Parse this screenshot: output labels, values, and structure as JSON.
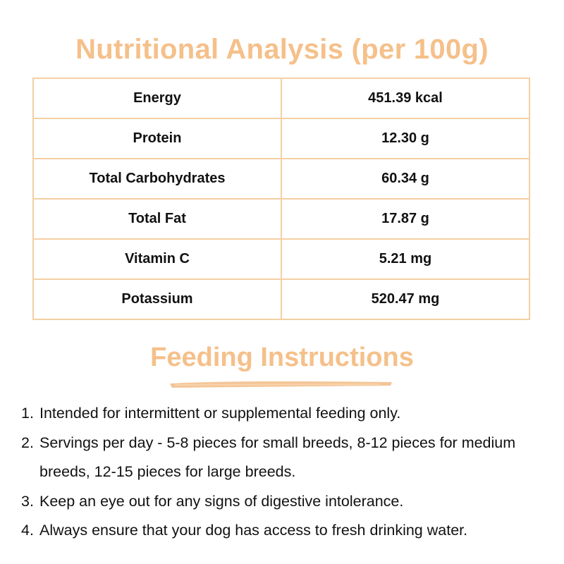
{
  "header": {
    "title": "Nutritional Analysis (per 100g)"
  },
  "table": {
    "rows": [
      [
        "Energy",
        "451.39 kcal"
      ],
      [
        "Protein",
        "12.30 g"
      ],
      [
        "Total Carbohydrates",
        "60.34 g"
      ],
      [
        "Total Fat",
        "17.87 g"
      ],
      [
        "Vitamin C",
        "5.21 mg"
      ],
      [
        "Potassium",
        "520.47 mg"
      ]
    ]
  },
  "instructions": {
    "title": "Feeding Instructions",
    "items": [
      {
        "number": "1.",
        "text": "Intended for intermittent or supplemental feeding only."
      },
      {
        "number": "2.",
        "text": "Servings per day - 5-8 pieces for small breeds, 8-12 pieces for medium breeds, 12-15 pieces for large breeds."
      },
      {
        "number": "3.",
        "text": "Keep an eye out for any signs of digestive intolerance."
      },
      {
        "number": "4.",
        "text": "Always ensure that your dog has access to fresh drinking water."
      }
    ]
  }
}
